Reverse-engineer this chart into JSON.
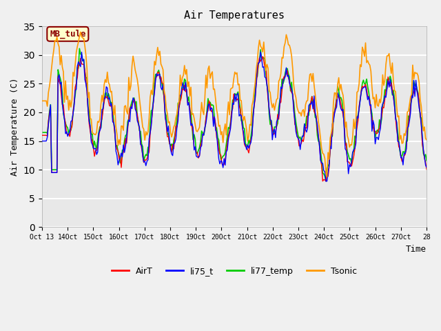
{
  "title": "Air Temperatures",
  "xlabel": "Time",
  "ylabel": "Air Temperature (C)",
  "ylim": [
    0,
    35
  ],
  "xlim": [
    0,
    15
  ],
  "bg_color": "#e8e8e8",
  "plot_bg": "#e8e8e8",
  "series_colors": {
    "AirT": "#ff0000",
    "li75_t": "#0000ff",
    "li77_temp": "#00cc00",
    "Tsonic": "#ff9900"
  },
  "legend_labels": [
    "AirT",
    "li75_t",
    "li77_temp",
    "Tsonic"
  ],
  "tick_labels": [
    "Oct 13",
    "14Oct",
    "15Oct",
    "16Oct",
    "17Oct",
    "18Oct",
    "19Oct",
    "20Oct",
    "21Oct",
    "22Oct",
    "23Oct",
    "24Oct",
    "25Oct",
    "26Oct",
    "27Oct",
    "28"
  ],
  "annotation_text": "MB_tule",
  "annotation_color": "#8b0000",
  "annotation_bg": "#ffffcc",
  "grid_color": "#ffffff",
  "yticks": [
    0,
    5,
    10,
    15,
    20,
    25,
    30,
    35
  ]
}
